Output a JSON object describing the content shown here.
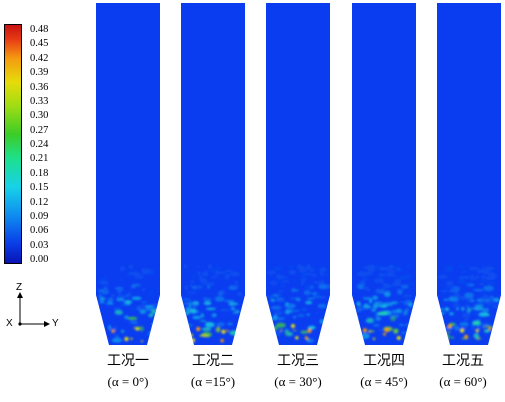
{
  "colorbar": {
    "ticks": [
      "0.48",
      "0.45",
      "0.42",
      "0.39",
      "0.36",
      "0.33",
      "0.30",
      "0.27",
      "0.24",
      "0.21",
      "0.18",
      "0.15",
      "0.12",
      "0.09",
      "0.06",
      "0.03",
      "0.00"
    ]
  },
  "axes": {
    "z": "Z",
    "x": "X",
    "y": "Y"
  },
  "panels": [
    {
      "name": "工况一",
      "angle": "(α = 0°)"
    },
    {
      "name": "工况二",
      "angle": "(α =15°)"
    },
    {
      "name": "工况三",
      "angle": "(α = 30°)"
    },
    {
      "name": "工况四",
      "angle": "(α = 45°)"
    },
    {
      "name": "工况五",
      "angle": "(α = 60°)"
    }
  ],
  "colors": {
    "background_field": "#0a3cf0",
    "high": "#c81414"
  }
}
